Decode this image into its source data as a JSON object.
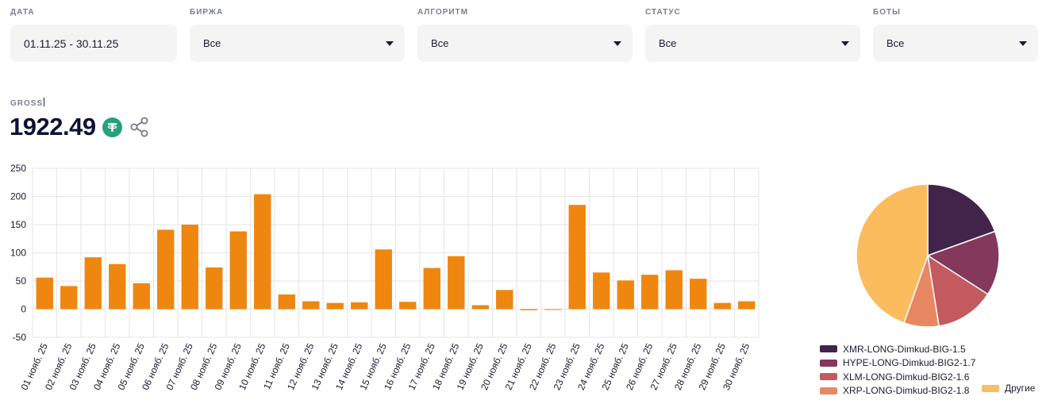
{
  "filters": [
    {
      "label": "ДАТА",
      "value": "01.11.25 - 30.11.25",
      "dropdown": false
    },
    {
      "label": "БИРЖА",
      "value": "Все",
      "dropdown": true
    },
    {
      "label": "АЛГОРИТМ",
      "value": "Все",
      "dropdown": true
    },
    {
      "label": "СТАТУС",
      "value": "Все",
      "dropdown": true
    },
    {
      "label": "БОТЫ",
      "value": "Все",
      "dropdown": true
    }
  ],
  "gross": {
    "label": "GROSS",
    "value": "1922.49",
    "currency_icon": "tether-icon",
    "share_icon": "share-icon"
  },
  "colors": {
    "bar": "#ef860f",
    "grid": "#e6e6e6",
    "axis_text": "#1b1b2f"
  },
  "chart_data": [
    {
      "type": "bar",
      "categories": [
        "01 нояб. 25",
        "02 нояб. 25",
        "03 нояб. 25",
        "04 нояб. 25",
        "05 нояб. 25",
        "06 нояб. 25",
        "07 нояб. 25",
        "08 нояб. 25",
        "09 нояб. 25",
        "10 нояб. 25",
        "11 нояб. 25",
        "12 нояб. 25",
        "13 нояб. 25",
        "14 нояб. 25",
        "15 нояб. 25",
        "16 нояб. 25",
        "17 нояб. 25",
        "18 нояб. 25",
        "19 нояб. 25",
        "20 нояб. 25",
        "21 нояб. 25",
        "22 нояб. 25",
        "23 нояб. 25",
        "24 нояб. 25",
        "25 нояб. 25",
        "26 нояб. 25",
        "27 нояб. 25",
        "28 нояб. 25",
        "29 нояб. 25",
        "30 нояб. 25"
      ],
      "values": [
        56,
        41,
        92,
        80,
        46,
        141,
        150,
        74,
        138,
        204,
        26,
        14,
        11,
        12,
        106,
        13,
        73,
        94,
        7,
        34,
        -2,
        -1,
        185,
        65,
        51,
        61,
        69,
        54,
        11,
        14
      ],
      "yticks": [
        250,
        200,
        150,
        100,
        50,
        0,
        -50
      ],
      "ylim": [
        -50,
        250
      ],
      "grid": true
    },
    {
      "type": "pie",
      "labels": [
        "XMR-LONG-Dimkud-BIG-1.5",
        "HYPE-LONG-Dimkud-BIG2-1.7",
        "XLM-LONG-Dimkud-BIG2-1.6",
        "XRP-LONG-Dimkud-BIG2-1.8",
        "Другие"
      ],
      "values": [
        19.5,
        14.6,
        13.4,
        7.9,
        44.6
      ],
      "colors": [
        "#42244a",
        "#84385b",
        "#c25a60",
        "#e88863",
        "#fbbc5d"
      ],
      "legend_position": "bottom"
    }
  ]
}
